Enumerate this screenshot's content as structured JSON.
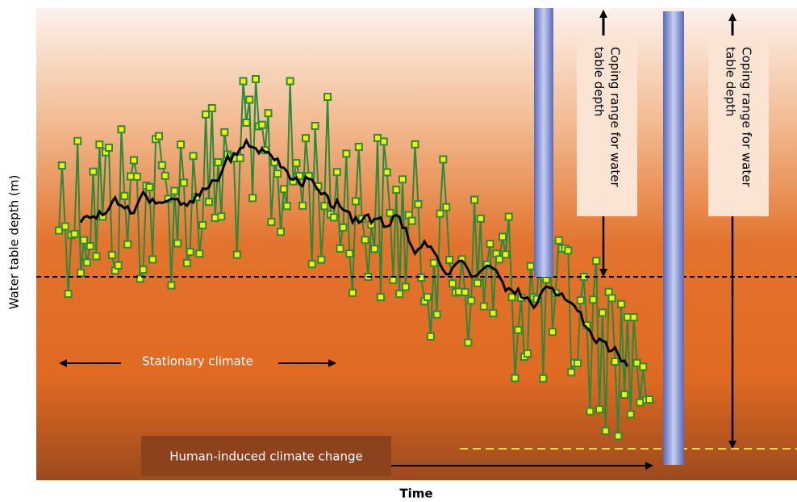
{
  "y_label": "Water table depth (m)",
  "x_label": "Time",
  "stationary_label": "Stationary climate",
  "human_label": "Human-induced climate change",
  "coping_boxes": [
    {
      "lines": [
        "Coping range for water",
        "table depth"
      ]
    },
    {
      "lines": [
        "Coping range for water",
        "table depth"
      ]
    }
  ]
}
